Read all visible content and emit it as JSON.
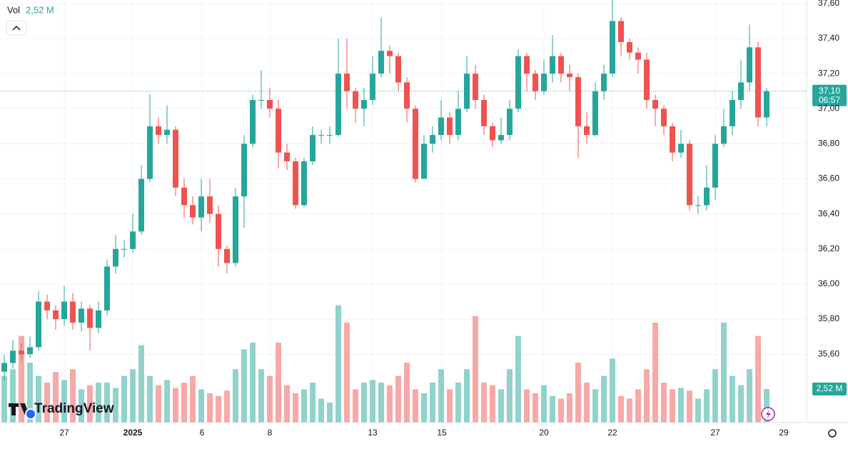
{
  "chart_data": {
    "type": "candlestick",
    "volume_title": "Vol",
    "volume_label": "2,52 M",
    "last_price_label": "37,10",
    "countdown": "06:57",
    "brand": "TradingView",
    "x_labels": [
      "27",
      "2025",
      "6",
      "8",
      "13",
      "15",
      "20",
      "22",
      "27",
      "29"
    ],
    "ylim": [
      35.21,
      37.62
    ],
    "yticks": [
      {
        "value": 35.6,
        "label": "35,60"
      },
      {
        "value": 35.8,
        "label": "35,80"
      },
      {
        "value": 36.0,
        "label": "36,00"
      },
      {
        "value": 36.2,
        "label": "36,20"
      },
      {
        "value": 36.4,
        "label": "36,40"
      },
      {
        "value": 36.6,
        "label": "36,60"
      },
      {
        "value": 36.8,
        "label": "36,80"
      },
      {
        "value": 37.0,
        "label": "37,00"
      },
      {
        "value": 37.2,
        "label": "37,20"
      },
      {
        "value": 37.4,
        "label": "37,40"
      },
      {
        "value": 37.6,
        "label": "37,60"
      }
    ],
    "volume_lim": [
      0,
      31.7
    ],
    "grid": true,
    "up_color": "#26a69a",
    "down_color": "#ef5350",
    "open": [
      35.5,
      35.55,
      35.62,
      35.6,
      35.64,
      35.9,
      35.85,
      35.8,
      35.9,
      35.78,
      35.86,
      35.75,
      35.85,
      36.1,
      36.2,
      36.2,
      36.3,
      36.6,
      36.9,
      36.85,
      36.88,
      36.55,
      36.45,
      36.38,
      36.5,
      36.4,
      36.2,
      36.12,
      36.5,
      36.8,
      37.05,
      37.05,
      37.0,
      36.75,
      36.7,
      36.45,
      36.7,
      36.85,
      36.85,
      36.85,
      37.2,
      37.1,
      37.0,
      37.05,
      37.2,
      37.33,
      37.3,
      37.15,
      37.0,
      36.6,
      36.8,
      36.85,
      36.95,
      36.85,
      37.0,
      37.2,
      37.05,
      36.9,
      36.82,
      36.85,
      37.0,
      37.3,
      37.2,
      37.1,
      37.2,
      37.3,
      37.2,
      37.18,
      36.9,
      36.85,
      37.1,
      37.2,
      37.5,
      37.38,
      37.32,
      37.28,
      37.05,
      37.0,
      36.9,
      36.75,
      36.8,
      36.45,
      36.45,
      36.55,
      36.8,
      36.9,
      37.05,
      37.15,
      37.35,
      36.95
    ],
    "high": [
      35.6,
      35.68,
      35.66,
      35.7,
      35.96,
      35.94,
      35.88,
      35.99,
      35.95,
      35.9,
      35.88,
      35.9,
      36.14,
      36.28,
      36.25,
      36.4,
      36.68,
      37.08,
      36.95,
      37.02,
      36.9,
      36.6,
      36.5,
      36.6,
      36.6,
      36.45,
      36.22,
      36.55,
      36.85,
      37.08,
      37.22,
      37.12,
      37.05,
      36.8,
      36.72,
      36.72,
      36.9,
      36.88,
      36.9,
      37.4,
      37.4,
      37.12,
      37.12,
      37.3,
      37.52,
      37.36,
      37.32,
      37.18,
      37.02,
      36.85,
      36.9,
      37.05,
      36.98,
      37.1,
      37.3,
      37.25,
      37.08,
      36.92,
      36.95,
      37.05,
      37.34,
      37.32,
      37.22,
      37.28,
      37.42,
      37.32,
      37.25,
      37.2,
      36.98,
      37.15,
      37.25,
      37.62,
      37.52,
      37.4,
      37.35,
      37.32,
      37.08,
      37.02,
      36.92,
      36.88,
      36.82,
      36.5,
      36.68,
      36.85,
      37.0,
      37.1,
      37.28,
      37.48,
      37.38,
      37.12
    ],
    "low": [
      35.45,
      35.52,
      35.56,
      35.58,
      35.62,
      35.8,
      35.74,
      35.76,
      35.74,
      35.73,
      35.62,
      35.72,
      35.82,
      36.06,
      36.15,
      36.18,
      36.28,
      36.58,
      36.8,
      36.8,
      36.5,
      36.38,
      36.34,
      36.3,
      36.35,
      36.1,
      36.06,
      36.1,
      36.32,
      36.78,
      37.0,
      36.95,
      36.66,
      36.65,
      36.43,
      36.44,
      36.68,
      36.8,
      36.8,
      36.84,
      37.0,
      36.92,
      36.9,
      37.02,
      37.18,
      37.2,
      37.1,
      36.92,
      36.58,
      36.6,
      36.75,
      36.82,
      36.8,
      36.82,
      36.98,
      37.0,
      36.85,
      36.78,
      36.8,
      36.82,
      36.98,
      37.1,
      37.05,
      37.08,
      37.15,
      37.15,
      37.1,
      36.72,
      36.8,
      36.84,
      37.05,
      37.18,
      37.3,
      37.28,
      37.2,
      37.0,
      36.9,
      36.85,
      36.7,
      36.72,
      36.42,
      36.4,
      36.42,
      36.48,
      36.78,
      36.85,
      37.0,
      37.1,
      36.9,
      36.9
    ],
    "close": [
      35.55,
      35.62,
      35.6,
      35.64,
      35.9,
      35.85,
      35.8,
      35.9,
      35.78,
      35.86,
      35.75,
      35.85,
      36.1,
      36.2,
      36.2,
      36.3,
      36.6,
      36.9,
      36.85,
      36.88,
      36.55,
      36.45,
      36.38,
      36.5,
      36.4,
      36.2,
      36.12,
      36.5,
      36.8,
      37.05,
      37.05,
      37.0,
      36.75,
      36.7,
      36.45,
      36.7,
      36.85,
      36.85,
      36.85,
      37.2,
      37.1,
      37.0,
      37.05,
      37.2,
      37.33,
      37.3,
      37.15,
      37.0,
      36.6,
      36.8,
      36.85,
      36.95,
      36.85,
      37.0,
      37.2,
      37.05,
      36.9,
      36.82,
      36.85,
      37.0,
      37.3,
      37.2,
      37.1,
      37.2,
      37.3,
      37.2,
      37.18,
      36.9,
      36.85,
      37.1,
      37.2,
      37.5,
      37.38,
      37.32,
      37.28,
      37.05,
      37.0,
      36.9,
      36.75,
      36.8,
      36.45,
      36.45,
      36.55,
      36.8,
      36.9,
      37.05,
      37.15,
      37.35,
      36.95,
      37.1
    ],
    "volume": [
      3.5,
      4.0,
      6.5,
      4.5,
      3.5,
      3.0,
      3.8,
      3.2,
      4.0,
      2.5,
      2.8,
      3.0,
      3.0,
      2.6,
      3.5,
      4.0,
      5.8,
      3.5,
      2.8,
      3.2,
      2.6,
      3.0,
      3.5,
      2.5,
      2.2,
      2.0,
      2.4,
      4.0,
      5.5,
      6.0,
      4.0,
      3.5,
      6.0,
      2.8,
      2.2,
      2.5,
      3.0,
      1.8,
      1.5,
      8.8,
      7.5,
      2.5,
      3.0,
      3.2,
      3.0,
      2.8,
      3.5,
      4.5,
      2.5,
      2.2,
      3.0,
      4.0,
      2.5,
      3.0,
      4.0,
      8.0,
      3.0,
      2.8,
      2.5,
      4.0,
      6.5,
      2.5,
      2.2,
      2.8,
      2.0,
      1.8,
      2.2,
      4.5,
      3.0,
      2.5,
      3.5,
      4.8,
      2.0,
      1.8,
      2.5,
      4.0,
      7.5,
      3.0,
      2.5,
      2.6,
      2.4,
      1.8,
      2.5,
      4.0,
      7.5,
      3.5,
      2.8,
      4.0,
      6.5,
      2.52
    ]
  }
}
